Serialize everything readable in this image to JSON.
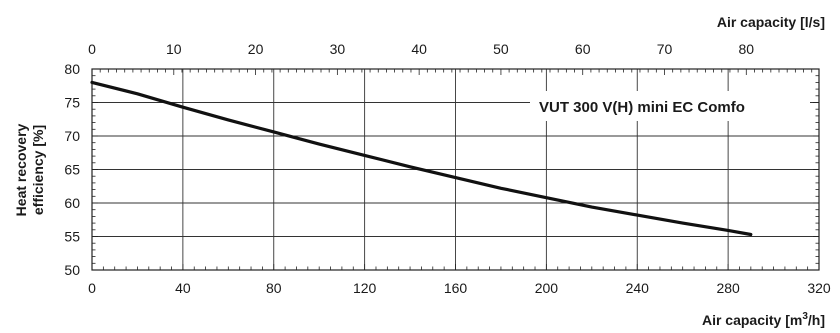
{
  "chart_data": {
    "type": "line",
    "series": [
      {
        "name": "VUT 300 V(H) mini EC Comfo",
        "x": [
          0,
          20,
          40,
          60,
          80,
          100,
          120,
          140,
          160,
          180,
          200,
          220,
          240,
          260,
          280,
          290
        ],
        "y": [
          78,
          76.3,
          74.3,
          72.4,
          70.6,
          68.8,
          67.1,
          65.4,
          63.8,
          62.2,
          60.8,
          59.4,
          58.2,
          57.0,
          55.9,
          55.3
        ]
      }
    ],
    "x_bottom": {
      "title": "Air capacity [m",
      "title_sup": "3",
      "title_suffix": "/h]",
      "range": [
        0,
        320
      ],
      "ticks": [
        0,
        40,
        80,
        120,
        160,
        200,
        240,
        280,
        320
      ]
    },
    "x_top": {
      "title": "Air capacity [l/s]",
      "range": [
        0,
        88.89
      ],
      "ticks": [
        0,
        10,
        20,
        30,
        40,
        50,
        60,
        70,
        80
      ]
    },
    "y_axis": {
      "title_line1": "Heat recovery",
      "title_line2": "efficiency [%]",
      "range": [
        50,
        80
      ],
      "ticks": [
        50,
        55,
        60,
        65,
        70,
        75,
        80
      ]
    },
    "grid": true,
    "colors": {
      "line": "#111111",
      "grid": "#333333",
      "frame": "#222222"
    }
  }
}
